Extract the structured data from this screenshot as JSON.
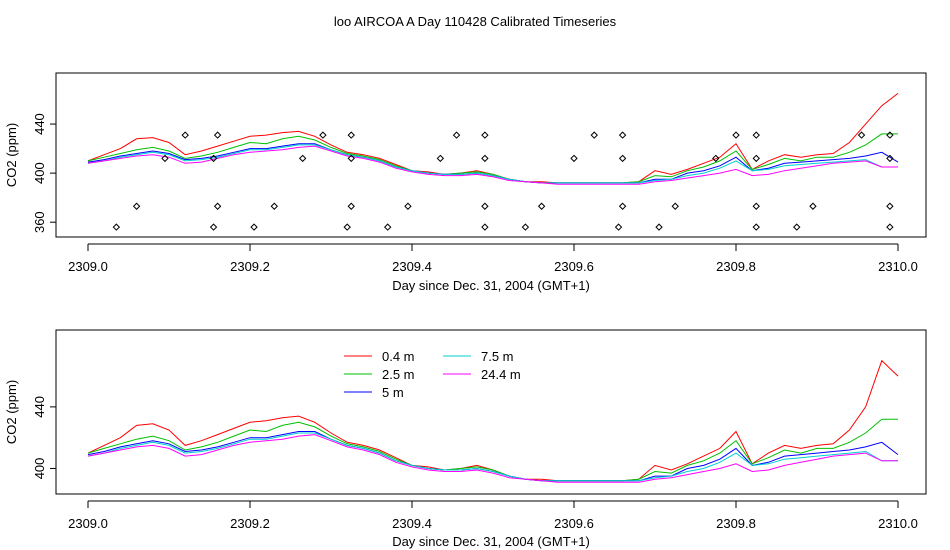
{
  "title": "loo AIRCOA A  Day 110428  Calibrated Timeseries",
  "colors": {
    "0.4 m": "#ff0000",
    "2.5 m": "#00c000",
    "5 m": "#0000ff",
    "7.5 m": "#00d0d0",
    "24.4 m": "#ff00ff",
    "frame": "#000000",
    "markers": "#000000"
  },
  "chart_data": [
    {
      "type": "line",
      "xlabel": "Day since Dec. 31, 2004 (GMT+1)",
      "ylabel": "CO2 (ppm)",
      "xlim": [
        2309.0,
        2310.0
      ],
      "ylim": [
        352,
        480
      ],
      "xticks": [
        2309.0,
        2309.2,
        2309.4,
        2309.6,
        2309.8,
        2310.0
      ],
      "xtick_labels": [
        "2309.0",
        "2309.2",
        "2309.4",
        "2309.6",
        "2309.8",
        "2310.0"
      ],
      "yticks": [
        360,
        400,
        440
      ],
      "ytick_labels": [
        "360",
        "400",
        "440"
      ],
      "grid": false,
      "x": [
        2309.0,
        2309.02,
        2309.04,
        2309.06,
        2309.08,
        2309.1,
        2309.12,
        2309.14,
        2309.16,
        2309.18,
        2309.2,
        2309.22,
        2309.24,
        2309.26,
        2309.28,
        2309.3,
        2309.32,
        2309.34,
        2309.36,
        2309.38,
        2309.4,
        2309.42,
        2309.44,
        2309.46,
        2309.48,
        2309.5,
        2309.52,
        2309.54,
        2309.56,
        2309.58,
        2309.6,
        2309.62,
        2309.64,
        2309.66,
        2309.68,
        2309.7,
        2309.72,
        2309.74,
        2309.76,
        2309.78,
        2309.8,
        2309.82,
        2309.84,
        2309.86,
        2309.88,
        2309.9,
        2309.92,
        2309.94,
        2309.96,
        2309.98,
        2310.0
      ],
      "series": [
        {
          "name": "0.4 m",
          "values": [
            410,
            415,
            420,
            428,
            429,
            425,
            415,
            418,
            422,
            426,
            430,
            431,
            433,
            434,
            430,
            423,
            417,
            415,
            412,
            407,
            402,
            401,
            399,
            400,
            402,
            399,
            395,
            393,
            393,
            392,
            392,
            392,
            392,
            392,
            393,
            402,
            399,
            403,
            408,
            413,
            424,
            403,
            410,
            415,
            413,
            415,
            416,
            425,
            440,
            455,
            465
          ]
        },
        {
          "name": "2.5 m",
          "values": [
            410,
            413,
            416,
            419,
            421,
            418,
            412,
            414,
            417,
            421,
            425,
            424,
            428,
            430,
            427,
            421,
            416,
            414,
            411,
            406,
            402,
            400,
            399,
            400,
            401,
            399,
            395,
            393,
            392,
            392,
            392,
            392,
            392,
            392,
            393,
            398,
            397,
            402,
            405,
            410,
            418,
            403,
            407,
            412,
            410,
            413,
            413,
            417,
            423,
            432,
            432
          ]
        },
        {
          "name": "5 m",
          "values": [
            409,
            411,
            414,
            416,
            418,
            416,
            411,
            412,
            414,
            417,
            420,
            420,
            422,
            424,
            424,
            419,
            415,
            413,
            410,
            405,
            402,
            400,
            399,
            399,
            400,
            398,
            395,
            393,
            392,
            392,
            392,
            392,
            392,
            392,
            392,
            395,
            395,
            400,
            402,
            406,
            413,
            402,
            404,
            408,
            409,
            410,
            411,
            412,
            414,
            417,
            409
          ]
        },
        {
          "name": "7.5 m",
          "values": [
            408,
            410,
            413,
            415,
            417,
            415,
            410,
            411,
            413,
            416,
            419,
            419,
            421,
            423,
            423,
            419,
            415,
            413,
            410,
            405,
            402,
            400,
            399,
            399,
            400,
            398,
            395,
            393,
            392,
            392,
            392,
            392,
            392,
            392,
            392,
            394,
            395,
            398,
            400,
            404,
            410,
            402,
            403,
            406,
            407,
            408,
            409,
            410,
            411,
            405,
            405
          ]
        },
        {
          "name": "24.4 m",
          "values": [
            408,
            410,
            412,
            414,
            415,
            413,
            408,
            409,
            412,
            415,
            417,
            418,
            419,
            421,
            422,
            418,
            414,
            412,
            409,
            404,
            401,
            399,
            398,
            398,
            399,
            397,
            394,
            393,
            392,
            391,
            391,
            391,
            391,
            391,
            391,
            393,
            394,
            396,
            398,
            400,
            403,
            398,
            399,
            402,
            404,
            406,
            408,
            409,
            410,
            405,
            405
          ]
        }
      ],
      "markers": {
        "x": [
          2309.035,
          2309.06,
          2309.095,
          2309.12,
          2309.155,
          2309.16,
          2309.155,
          2309.16,
          2309.205,
          2309.23,
          2309.265,
          2309.29,
          2309.32,
          2309.325,
          2309.325,
          2309.325,
          2309.37,
          2309.395,
          2309.435,
          2309.455,
          2309.49,
          2309.49,
          2309.49,
          2309.49,
          2309.54,
          2309.56,
          2309.6,
          2309.625,
          2309.655,
          2309.66,
          2309.66,
          2309.66,
          2309.705,
          2309.725,
          2309.775,
          2309.8,
          2309.825,
          2309.825,
          2309.825,
          2309.825,
          2309.875,
          2309.895,
          2309.955,
          2309.99,
          2309.99,
          2309.99,
          2309.99
        ],
        "y": [
          356,
          373,
          412,
          431,
          356,
          373,
          412,
          431,
          356,
          373,
          412,
          431,
          356,
          373,
          412,
          431,
          356,
          373,
          412,
          431,
          356,
          373,
          412,
          431,
          356,
          373,
          412,
          431,
          356,
          373,
          412,
          431,
          356,
          373,
          412,
          431,
          356,
          373,
          412,
          431,
          356,
          373,
          431,
          356,
          373,
          412,
          431
        ]
      }
    },
    {
      "type": "line",
      "xlabel": "Day since Dec. 31, 2004 (GMT+1)",
      "ylabel": "CO2 (ppm)",
      "xlim": [
        2309.0,
        2310.0
      ],
      "ylim": [
        386,
        488
      ],
      "xticks": [
        2309.0,
        2309.2,
        2309.4,
        2309.6,
        2309.8,
        2310.0
      ],
      "xtick_labels": [
        "2309.0",
        "2309.2",
        "2309.4",
        "2309.6",
        "2309.8",
        "2310.0"
      ],
      "yticks": [
        400,
        440
      ],
      "ytick_labels": [
        "400",
        "440"
      ],
      "grid": false,
      "legend": "top-left-center",
      "x": [
        2309.0,
        2309.02,
        2309.04,
        2309.06,
        2309.08,
        2309.1,
        2309.12,
        2309.14,
        2309.16,
        2309.18,
        2309.2,
        2309.22,
        2309.24,
        2309.26,
        2309.28,
        2309.3,
        2309.32,
        2309.34,
        2309.36,
        2309.38,
        2309.4,
        2309.42,
        2309.44,
        2309.46,
        2309.48,
        2309.5,
        2309.52,
        2309.54,
        2309.56,
        2309.58,
        2309.6,
        2309.62,
        2309.64,
        2309.66,
        2309.68,
        2309.7,
        2309.72,
        2309.74,
        2309.76,
        2309.78,
        2309.8,
        2309.82,
        2309.84,
        2309.86,
        2309.88,
        2309.9,
        2309.92,
        2309.94,
        2309.96,
        2309.98,
        2310.0
      ],
      "series": [
        {
          "name": "0.4 m",
          "values": [
            410,
            415,
            420,
            428,
            429,
            425,
            415,
            418,
            422,
            426,
            430,
            431,
            433,
            434,
            430,
            423,
            417,
            415,
            412,
            407,
            402,
            401,
            399,
            400,
            402,
            399,
            395,
            393,
            393,
            392,
            392,
            392,
            392,
            392,
            393,
            402,
            399,
            403,
            408,
            413,
            424,
            403,
            410,
            415,
            413,
            415,
            416,
            425,
            440,
            470,
            460
          ]
        },
        {
          "name": "2.5 m",
          "values": [
            410,
            413,
            416,
            419,
            421,
            418,
            412,
            414,
            417,
            421,
            425,
            424,
            428,
            430,
            427,
            421,
            416,
            414,
            411,
            406,
            402,
            400,
            399,
            400,
            401,
            399,
            395,
            393,
            392,
            392,
            392,
            392,
            392,
            392,
            393,
            398,
            397,
            402,
            405,
            410,
            418,
            403,
            407,
            412,
            410,
            413,
            413,
            417,
            423,
            432,
            432
          ]
        },
        {
          "name": "5 m",
          "values": [
            409,
            411,
            414,
            416,
            418,
            416,
            411,
            412,
            414,
            417,
            420,
            420,
            422,
            424,
            424,
            419,
            415,
            413,
            410,
            405,
            402,
            400,
            399,
            399,
            400,
            398,
            395,
            393,
            392,
            392,
            392,
            392,
            392,
            392,
            392,
            395,
            395,
            400,
            402,
            406,
            413,
            402,
            404,
            408,
            409,
            410,
            411,
            412,
            414,
            417,
            409
          ]
        },
        {
          "name": "7.5 m",
          "values": [
            408,
            410,
            413,
            415,
            417,
            415,
            410,
            411,
            413,
            416,
            419,
            419,
            421,
            423,
            423,
            419,
            415,
            413,
            410,
            405,
            402,
            400,
            399,
            399,
            400,
            398,
            395,
            393,
            392,
            392,
            392,
            392,
            392,
            392,
            392,
            394,
            395,
            398,
            400,
            404,
            410,
            402,
            403,
            406,
            407,
            408,
            409,
            410,
            411,
            405,
            405
          ]
        },
        {
          "name": "24.4 m",
          "values": [
            408,
            410,
            412,
            414,
            415,
            413,
            408,
            409,
            412,
            415,
            417,
            418,
            419,
            421,
            422,
            418,
            414,
            412,
            409,
            404,
            401,
            399,
            398,
            398,
            399,
            397,
            394,
            393,
            392,
            391,
            391,
            391,
            391,
            391,
            391,
            393,
            394,
            396,
            398,
            400,
            403,
            398,
            399,
            402,
            404,
            406,
            408,
            409,
            410,
            405,
            405
          ]
        }
      ]
    }
  ]
}
